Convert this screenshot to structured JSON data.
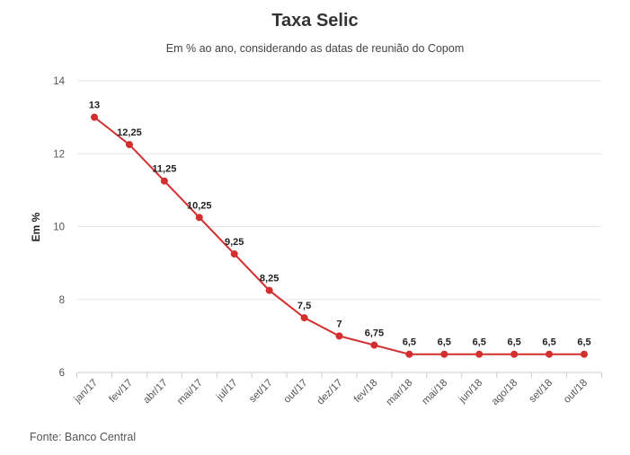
{
  "chart_data": {
    "type": "line",
    "title": "Taxa Selic",
    "subtitle": "Em % ao ano, considerando as datas de reunião do Copom",
    "ylabel": "Em %",
    "xlabel": "",
    "ylim": [
      6,
      14
    ],
    "yticks": [
      6,
      8,
      10,
      12,
      14
    ],
    "grid": true,
    "legend": "none",
    "categories": [
      "jan/17",
      "fev/17",
      "abr/17",
      "mai/17",
      "jul/17",
      "set/17",
      "out/17",
      "dez/17",
      "fev/18",
      "mar/18",
      "mai/18",
      "jun/18",
      "ago/18",
      "set/18",
      "out/18"
    ],
    "values": [
      13,
      12.25,
      11.25,
      10.25,
      9.25,
      8.25,
      7.5,
      7,
      6.75,
      6.5,
      6.5,
      6.5,
      6.5,
      6.5,
      6.5
    ],
    "value_labels": [
      "13",
      "12,25",
      "11,25",
      "10,25",
      "9,25",
      "8,25",
      "7,5",
      "7",
      "6,75",
      "6,5",
      "6,5",
      "6,5",
      "6,5",
      "6,5",
      "6,5"
    ],
    "line_color": "#d32f2f"
  },
  "source": "Fonte: Banco Central"
}
